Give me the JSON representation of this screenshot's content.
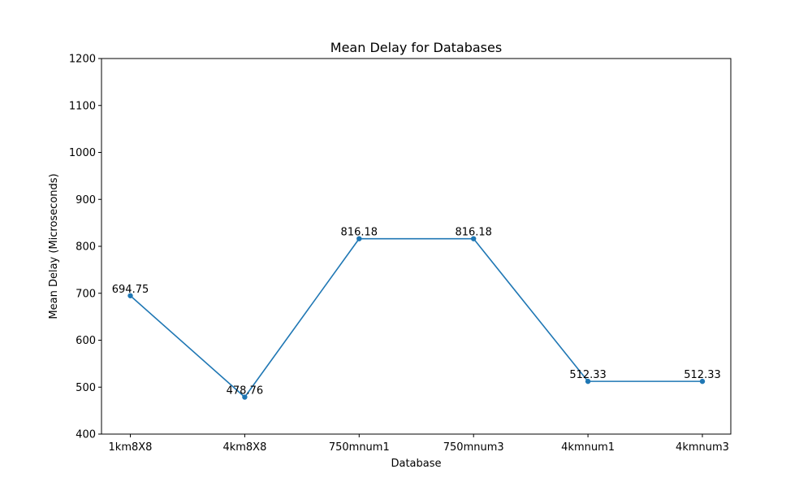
{
  "chart_data": {
    "type": "line",
    "title": "Mean Delay for Databases",
    "xlabel": "Database",
    "ylabel": "Mean Delay (Microseconds)",
    "categories": [
      "1km8X8",
      "4km8X8",
      "750mnum1",
      "750mnum3",
      "4kmnum1",
      "4kmnum3"
    ],
    "series": [
      {
        "values": [
          694.75,
          478.76,
          816.18,
          816.18,
          512.33,
          512.33
        ],
        "data_labels": [
          "694.75",
          "478.76",
          "816.18",
          "816.18",
          "512.33",
          "512.33"
        ]
      }
    ],
    "ylim": [
      400,
      1200
    ],
    "yticks": [
      400,
      500,
      600,
      700,
      800,
      900,
      1000,
      1100,
      1200
    ],
    "grid": false,
    "marker": "circle",
    "line_color": "#1f77b4"
  }
}
